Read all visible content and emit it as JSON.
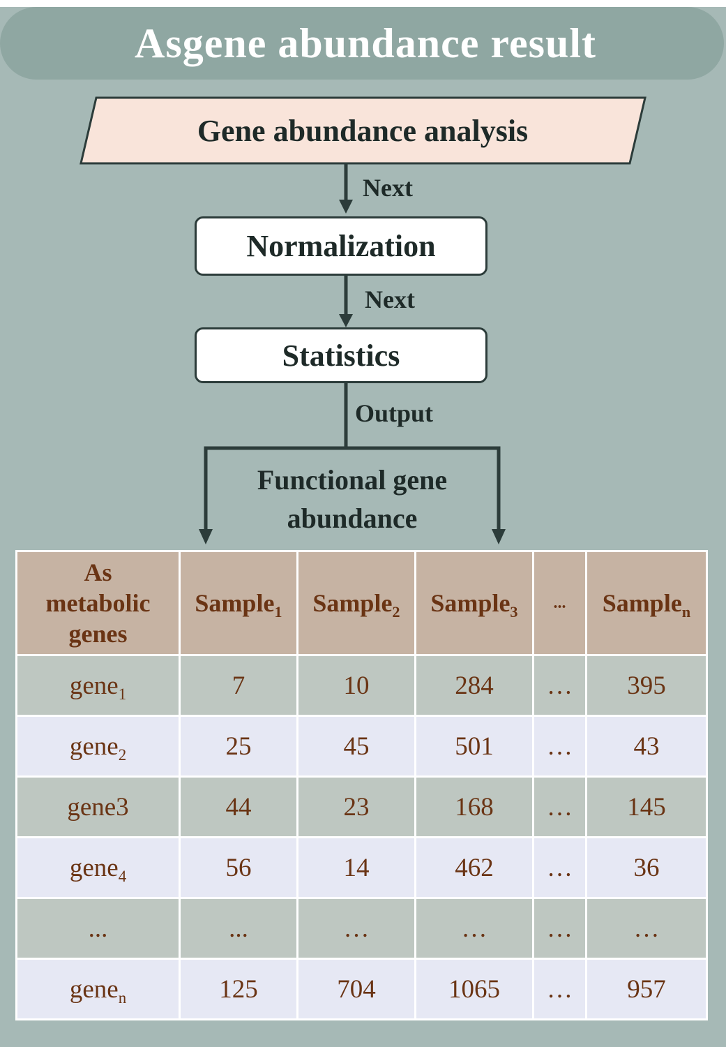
{
  "title": "Asgene abundance result",
  "steps": {
    "gene_abundance": "Gene abundance analysis",
    "normalization": "Normalization",
    "statistics": "Statistics"
  },
  "edges": {
    "next_1": "Next",
    "next_2": "Next",
    "output": "Output"
  },
  "result_label": "Functional gene abundance",
  "table": {
    "header_first": "As metabolic genes",
    "columns": [
      {
        "base": "Sample",
        "sub": "1"
      },
      {
        "base": "Sample",
        "sub": "2"
      },
      {
        "base": "Sample",
        "sub": "3"
      },
      {
        "base": "...",
        "sub": ""
      },
      {
        "base": "Sample",
        "sub": "n"
      }
    ],
    "rows": [
      {
        "gene": "gene",
        "sub": "1",
        "values": [
          "7",
          "10",
          "284",
          "…",
          "395"
        ]
      },
      {
        "gene": "gene",
        "sub": "2",
        "values": [
          "25",
          "45",
          "501",
          "…",
          "43"
        ]
      },
      {
        "gene": "gene3",
        "sub": "",
        "values": [
          "44",
          "23",
          "168",
          "…",
          "145"
        ]
      },
      {
        "gene": "gene",
        "sub": "4",
        "values": [
          "56",
          "14",
          "462",
          "…",
          "36"
        ]
      },
      {
        "gene": "...",
        "sub": "",
        "values": [
          "...",
          "…",
          "…",
          "…",
          "…"
        ]
      },
      {
        "gene": "gene",
        "sub": "n",
        "values": [
          "125",
          "704",
          "1065",
          "…",
          "957"
        ]
      }
    ]
  },
  "colors": {
    "panel": "#a6b9b6",
    "title_bar": "#8fa7a2",
    "parallelogram": "#f9e4da",
    "header": "#c6b3a3",
    "row_dark": "#bec7c1",
    "row_light": "#e6e8f4",
    "table_text": "#6a3414"
  }
}
